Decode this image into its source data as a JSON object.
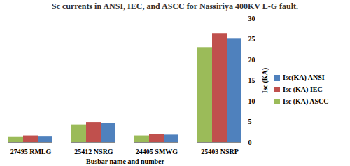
{
  "chart_data": {
    "type": "bar",
    "title": "Sc currents in ANSI, IEC, and ASCC for Nassiriya 400KV  L-G fault.",
    "x_label": "Busbar name and number",
    "y_label": "Isc (KA)",
    "categories": [
      "27495 RMLG",
      "25412 NSRG",
      "24405 SMWG",
      "25403 NSRP"
    ],
    "series": [
      {
        "name": "Isc(KA) ANSI",
        "color": "#4f81bd",
        "values": [
          1.5,
          4.7,
          1.8,
          25.2
        ]
      },
      {
        "name": "Isc (KA) IEC",
        "color": "#c0504d",
        "values": [
          1.6,
          4.9,
          1.9,
          26.4
        ]
      },
      {
        "name": "Isc (KA) ASCC",
        "color": "#9bbb59",
        "values": [
          1.4,
          4.3,
          1.6,
          23
        ]
      }
    ],
    "ylim": [
      0,
      30
    ],
    "yticks": [
      0,
      5,
      10,
      15,
      20,
      25,
      30
    ],
    "grid": false,
    "legend": "right"
  }
}
